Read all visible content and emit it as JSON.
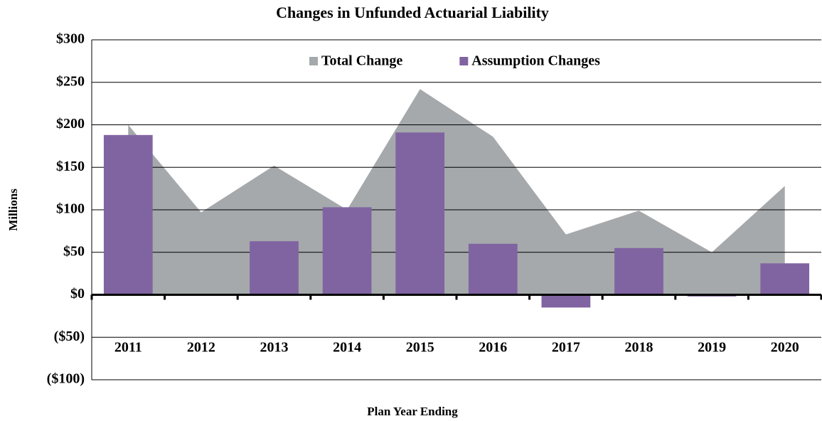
{
  "chart_data": {
    "type": "area_bar",
    "title": "Changes in Unfunded Actuarial Liability",
    "xlabel": "Plan Year Ending",
    "ylabel": "Millions",
    "categories": [
      "2011",
      "2012",
      "2013",
      "2014",
      "2015",
      "2016",
      "2017",
      "2018",
      "2019",
      "2020"
    ],
    "series": [
      {
        "name": "Total Change",
        "type": "area",
        "color": "#a5a9ab",
        "values": [
          200,
          97,
          152,
          100,
          242,
          186,
          71,
          99,
          50,
          128
        ]
      },
      {
        "name": "Assumption Changes",
        "type": "bar",
        "color": "#8064a2",
        "values": [
          188,
          0,
          63,
          103,
          191,
          60,
          -15,
          55,
          -2,
          37
        ]
      }
    ],
    "ylim": [
      -100,
      300
    ],
    "yticks": [
      {
        "value": -100,
        "label": "($100)"
      },
      {
        "value": -50,
        "label": "($50)"
      },
      {
        "value": 0,
        "label": "$0"
      },
      {
        "value": 50,
        "label": "$50"
      },
      {
        "value": 100,
        "label": "$100"
      },
      {
        "value": 150,
        "label": "$150"
      },
      {
        "value": 200,
        "label": "$200"
      },
      {
        "value": 250,
        "label": "$250"
      },
      {
        "value": 300,
        "label": "$300"
      }
    ],
    "grid": true,
    "legend": "top"
  }
}
